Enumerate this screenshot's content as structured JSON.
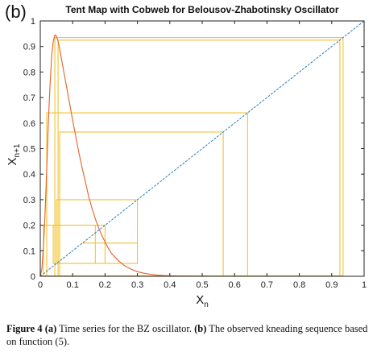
{
  "panel_label": "(b)",
  "caption": {
    "label": "Figure 4",
    "text_before_a": " ",
    "part_a": "(a)",
    "text_a": " Time series for the BZ oscillator. ",
    "part_b": "(b)",
    "text_b": " The observed kneading sequence based on function (5)."
  },
  "colors": {
    "diagonal": "#2f7fb8",
    "map_curve": "#e2622a",
    "cobweb": "#f2c230",
    "axes": "#222222"
  },
  "chart_data": {
    "type": "line",
    "title": "Tent Map with Cobweb for Belousov-Zhabotinsky Oscillator",
    "xlabel": "X",
    "xlabel_sub": "n",
    "ylabel": "X",
    "ylabel_sub": "n+1",
    "xlim": [
      0,
      1
    ],
    "ylim": [
      0,
      1
    ],
    "xticks": [
      "0",
      "0.1",
      "0.2",
      "0.3",
      "0.4",
      "0.5",
      "0.6",
      "0.7",
      "0.8",
      "0.9",
      "1"
    ],
    "yticks": [
      "0",
      "0.1",
      "0.2",
      "0.3",
      "0.4",
      "0.5",
      "0.6",
      "0.7",
      "0.8",
      "0.9",
      "1"
    ],
    "grid": false,
    "series": [
      {
        "role": "diagonal",
        "x": [
          0,
          1
        ],
        "y": [
          0,
          1
        ]
      },
      {
        "role": "map",
        "x": [
          0,
          0.005,
          0.01,
          0.015,
          0.02,
          0.025,
          0.03,
          0.035,
          0.04,
          0.045,
          0.05,
          0.055,
          0.06,
          0.065,
          0.07,
          0.08,
          0.09,
          0.1,
          0.11,
          0.12,
          0.13,
          0.14,
          0.15,
          0.16,
          0.17,
          0.18,
          0.19,
          0.2,
          0.21,
          0.22,
          0.24,
          0.26,
          0.28,
          0.3,
          0.32,
          0.34,
          0.36,
          0.38,
          0.4,
          0.43,
          0.46,
          0.5,
          0.55,
          0.6,
          0.7,
          0.8,
          0.9,
          1.0
        ],
        "y": [
          0,
          0.03,
          0.12,
          0.25,
          0.42,
          0.6,
          0.75,
          0.86,
          0.92,
          0.945,
          0.94,
          0.92,
          0.89,
          0.855,
          0.82,
          0.75,
          0.68,
          0.61,
          0.545,
          0.48,
          0.42,
          0.365,
          0.31,
          0.265,
          0.225,
          0.19,
          0.16,
          0.135,
          0.11,
          0.09,
          0.062,
          0.042,
          0.028,
          0.018,
          0.012,
          0.008,
          0.005,
          0.003,
          0.002,
          0.001,
          0.0005,
          0.0002,
          0.0001,
          0,
          0,
          0,
          0,
          0
        ]
      }
    ],
    "cobweb": {
      "x": [
        0.045,
        0.045,
        0.935,
        0.935,
        0.055,
        0.055,
        0.925,
        0.925,
        0.06,
        0.06,
        0.565,
        0.565,
        0.02,
        0.02,
        0.64,
        0.64,
        0.01,
        0.01,
        0.2,
        0.2,
        0.05,
        0.05,
        0.3,
        0.3,
        0.17,
        0.17,
        0.04,
        0.04,
        0.3,
        0.3,
        0.13
      ],
      "y": [
        0,
        0.935,
        0.935,
        0.002,
        0.002,
        0.925,
        0.925,
        0.002,
        0.002,
        0.565,
        0.565,
        0.002,
        0.002,
        0.64,
        0.64,
        0.002,
        0.002,
        0.2,
        0.2,
        0.05,
        0.05,
        0.3,
        0.3,
        0.05,
        0.05,
        0.2,
        0.2,
        0.05,
        0.05,
        0.13,
        0.13
      ]
    }
  }
}
